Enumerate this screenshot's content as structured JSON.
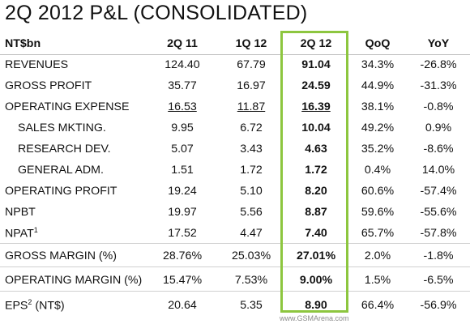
{
  "title": "2Q 2012 P&L (CONSOLIDATED)",
  "columns": [
    "NT$bn",
    "2Q 11",
    "1Q 12",
    "2Q 12",
    "QoQ",
    "YoY"
  ],
  "rows": [
    {
      "label": "REVENUES",
      "q2_11": "124.40",
      "q1_12": "67.79",
      "q2_12": "91.04",
      "qoq": "34.3%",
      "yoy": "-26.8%"
    },
    {
      "label": "GROSS PROFIT",
      "q2_11": "35.77",
      "q1_12": "16.97",
      "q2_12": "24.59",
      "qoq": "44.9%",
      "yoy": "-31.3%"
    },
    {
      "label": "OPERATING EXPENSE",
      "q2_11": "16.53",
      "q1_12": "11.87",
      "q2_12": "16.39",
      "qoq": "38.1%",
      "yoy": "-0.8%"
    },
    {
      "label": "SALES MKTING.",
      "q2_11": "9.95",
      "q1_12": "6.72",
      "q2_12": "10.04",
      "qoq": "49.2%",
      "yoy": "0.9%"
    },
    {
      "label": "RESEARCH DEV.",
      "q2_11": "5.07",
      "q1_12": "3.43",
      "q2_12": "4.63",
      "qoq": "35.2%",
      "yoy": "-8.6%"
    },
    {
      "label": "GENERAL ADM.",
      "q2_11": "1.51",
      "q1_12": "1.72",
      "q2_12": "1.72",
      "qoq": "0.4%",
      "yoy": "14.0%"
    },
    {
      "label": "OPERATING PROFIT",
      "q2_11": "19.24",
      "q1_12": "5.10",
      "q2_12": "8.20",
      "qoq": "60.6%",
      "yoy": "-57.4%"
    },
    {
      "label": "NPBT",
      "q2_11": "19.97",
      "q1_12": "5.56",
      "q2_12": "8.87",
      "qoq": "59.6%",
      "yoy": "-55.6%"
    },
    {
      "label": "NPAT",
      "label_sup": "1",
      "q2_11": "17.52",
      "q1_12": "4.47",
      "q2_12": "7.40",
      "qoq": "65.7%",
      "yoy": "-57.8%"
    },
    {
      "label": "GROSS MARGIN (%)",
      "q2_11": "28.76%",
      "q1_12": "25.03%",
      "q2_12": "27.01%",
      "qoq": "2.0%",
      "yoy": "-1.8%"
    },
    {
      "label": "OPERATING MARGIN (%)",
      "q2_11": "15.47%",
      "q1_12": "7.53%",
      "q2_12": "9.00%",
      "qoq": "1.5%",
      "yoy": "-6.5%"
    },
    {
      "label": "EPS",
      "label_sup": "2",
      "label_suffix": " (NT$)",
      "q2_11": "20.64",
      "q1_12": "5.35",
      "q2_12": "8.90",
      "qoq": "66.4%",
      "yoy": "-56.9%"
    }
  ],
  "watermark": "www.GSMArena.com",
  "accent_color": "#8dc63f"
}
